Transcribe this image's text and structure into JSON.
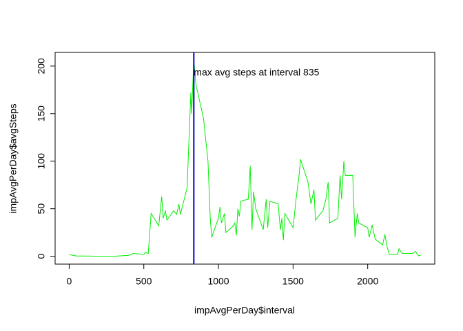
{
  "chart_data": {
    "type": "line",
    "xlabel": "impAvgPerDay$interval",
    "ylabel": "impAvgPerDay$avgSteps",
    "annotation": "max avg steps at interval  835",
    "vline": 835,
    "vline_color": "#0000cc",
    "color": "#00ee00",
    "x": [
      0,
      50,
      100,
      200,
      300,
      400,
      430,
      500,
      510,
      530,
      549,
      600,
      620,
      630,
      645,
      655,
      700,
      720,
      735,
      745,
      790,
      815,
      820,
      835,
      850,
      900,
      930,
      945,
      955,
      1000,
      1010,
      1020,
      1040,
      1050,
      1100,
      1110,
      1120,
      1130,
      1140,
      1150,
      1200,
      1213,
      1225,
      1235,
      1250,
      1300,
      1320,
      1330,
      1345,
      1400,
      1415,
      1425,
      1435,
      1445,
      1500,
      1520,
      1540,
      1550,
      1600,
      1620,
      1640,
      1650,
      1700,
      1720,
      1735,
      1745,
      1800,
      1815,
      1825,
      1840,
      1850,
      1900,
      1915,
      1930,
      1940,
      2000,
      2010,
      2030,
      2050,
      2100,
      2115,
      2130,
      2145,
      2200,
      2210,
      2230,
      2300,
      2320,
      2340,
      2355
    ],
    "values": [
      1.7,
      0.3,
      0.3,
      0,
      0,
      1,
      3,
      2,
      4,
      3,
      45,
      32,
      63,
      40,
      48,
      38,
      48,
      44,
      55,
      44,
      72,
      172,
      150,
      206,
      180,
      145,
      100,
      40,
      20,
      40,
      52,
      35,
      45,
      25,
      32,
      35,
      22,
      50,
      42,
      58,
      60,
      95,
      28,
      68,
      50,
      28,
      60,
      30,
      58,
      55,
      28,
      40,
      17,
      45,
      30,
      60,
      85,
      102,
      78,
      55,
      70,
      38,
      48,
      60,
      78,
      35,
      40,
      85,
      60,
      100,
      85,
      85,
      20,
      45,
      35,
      30,
      20,
      33,
      18,
      12,
      23,
      10,
      2,
      2,
      8,
      3,
      3,
      5,
      0.5,
      1.1
    ],
    "xlim": [
      -94.2,
      2449.2
    ],
    "ylim": [
      -8.25,
      214.4
    ],
    "xticks": [
      0,
      500,
      1000,
      1500,
      2000
    ],
    "yticks": [
      0,
      50,
      100,
      150,
      200
    ]
  }
}
